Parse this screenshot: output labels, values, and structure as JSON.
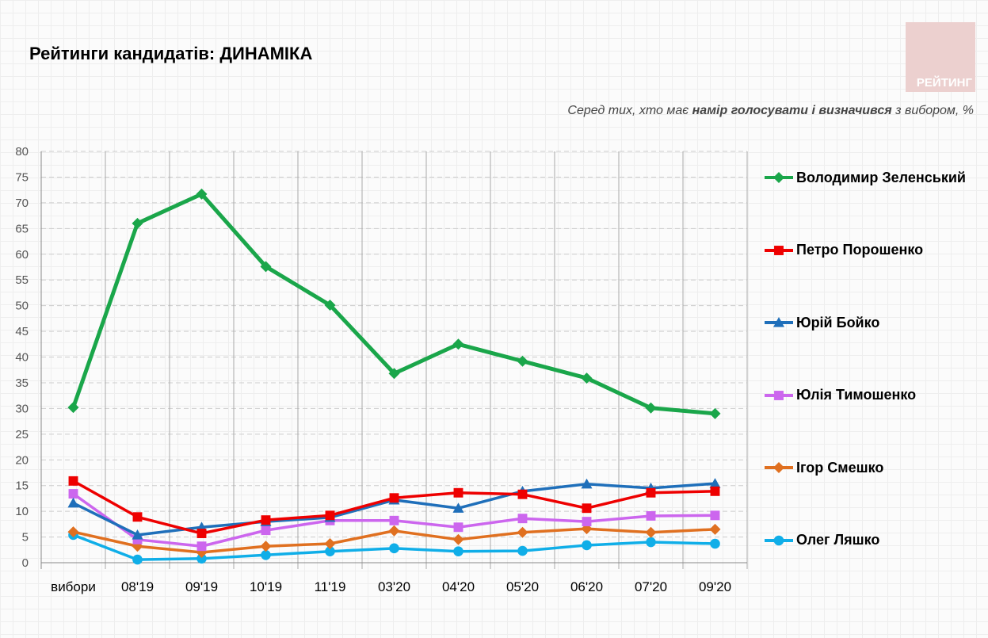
{
  "logo": "РЕЙТИНГ",
  "chart_data": {
    "type": "line",
    "title": "Рейтинги кандидатів: ДИНАМІКА",
    "subtitle_parts": [
      "Серед тих, хто має ",
      "намір голосувати і визначився",
      " з вибором, %"
    ],
    "categories": [
      "вибори",
      "08'19",
      "09'19",
      "10'19",
      "11'19",
      "03'20",
      "04'20",
      "05'20",
      "06'20",
      "07'20",
      "09'20"
    ],
    "ylim": [
      0,
      80
    ],
    "yticks": [
      0,
      5,
      10,
      15,
      20,
      25,
      30,
      35,
      40,
      45,
      50,
      55,
      60,
      65,
      70,
      75,
      80
    ],
    "grid": true,
    "legend": "right",
    "series": [
      {
        "name": "Володимир Зеленський",
        "color": "#1aa64a",
        "marker": "diamond",
        "values": [
          30.2,
          66.0,
          71.7,
          57.6,
          50.1,
          36.8,
          42.5,
          39.2,
          35.9,
          30.1,
          29.0
        ]
      },
      {
        "name": "Петро Порошенко",
        "color": "#ee0000",
        "marker": "square",
        "values": [
          15.9,
          8.9,
          5.7,
          8.3,
          9.2,
          12.6,
          13.6,
          13.3,
          10.6,
          13.6,
          13.9
        ]
      },
      {
        "name": "Юрій Бойко",
        "color": "#1f6fba",
        "marker": "triangle",
        "values": [
          11.6,
          5.4,
          6.9,
          8.0,
          8.8,
          12.2,
          10.6,
          13.9,
          15.3,
          14.5,
          15.4
        ]
      },
      {
        "name": "Юлія Тимошенко",
        "color": "#cc66ee",
        "marker": "square",
        "values": [
          13.4,
          4.5,
          3.2,
          6.3,
          8.2,
          8.2,
          6.9,
          8.6,
          8.0,
          9.1,
          9.2
        ]
      },
      {
        "name": "Ігор Смешко",
        "color": "#e07020",
        "marker": "diamond",
        "values": [
          6.0,
          3.2,
          2.0,
          3.2,
          3.7,
          6.2,
          4.5,
          5.9,
          6.6,
          5.9,
          6.5
        ]
      },
      {
        "name": "Олег Ляшко",
        "color": "#10aee8",
        "marker": "circle",
        "values": [
          5.4,
          0.6,
          0.8,
          1.5,
          2.2,
          2.8,
          2.2,
          2.3,
          3.4,
          4.0,
          3.7
        ]
      }
    ]
  }
}
